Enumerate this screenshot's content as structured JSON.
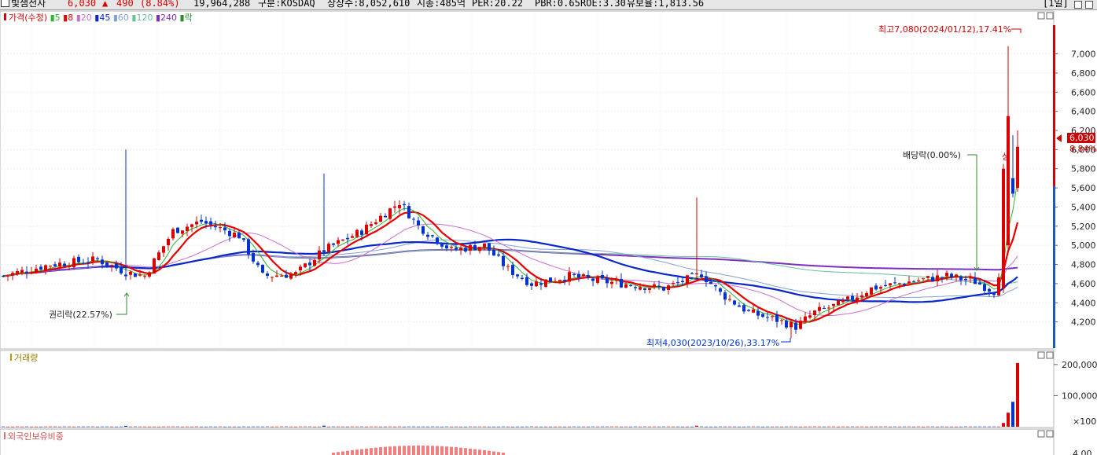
{
  "header": {
    "stock_name": "빛샘전자",
    "price": "6,030",
    "change_arrow": "▲",
    "change": "490",
    "change_pct": "(8.84%)",
    "volume": "19,964,288",
    "market": "구분:KOSDAQ",
    "shares": "상장수:8,052,610",
    "market_cap": "시총:485억",
    "per": "PER:20.22",
    "pbr": "PBR:0.65",
    "roe": "ROE:3.30",
    "float_rate": "유보율:1,813.56",
    "period_button": "[1일]",
    "colors": {
      "up": "#d90000",
      "down": "#0033cc"
    }
  },
  "legend": {
    "items": [
      {
        "label": "가격(수정)",
        "color": "#d40000"
      },
      {
        "label": "5",
        "color": "#2fb52f"
      },
      {
        "label": "8",
        "color": "#e60000"
      },
      {
        "label": "20",
        "color": "#c86fd0"
      },
      {
        "label": "45",
        "color": "#0a28c8"
      },
      {
        "label": "60",
        "color": "#7fa3d1"
      },
      {
        "label": "120",
        "color": "#6abf9b"
      },
      {
        "label": "240",
        "color": "#7d2fc0"
      },
      {
        "label": "락",
        "color": "#2f8a2f"
      }
    ]
  },
  "chart_data": [
    {
      "type": "candlestick",
      "title": "가격(수정)",
      "ylim": [
        4000,
        7300
      ],
      "y_ticks": [
        "7,000",
        "6,800",
        "6,600",
        "6,400",
        "6,200",
        "6,000",
        "5,800",
        "5,600",
        "5,400",
        "5,200",
        "5,000",
        "4,800",
        "4,600",
        "4,400",
        "4,200"
      ],
      "y_tick_values": [
        7000,
        6800,
        6600,
        6400,
        6200,
        6000,
        5800,
        5600,
        5400,
        5200,
        5000,
        4800,
        4600,
        4400,
        4200
      ],
      "current_price_label": "6,030",
      "current_change_label": "8.84%",
      "current_price": 6030,
      "annotations": {
        "high": "최고7,080(2024/01/12),17.41%",
        "low": "최저4,030(2023/10/26),33.17%",
        "rights": "권리락(22.57%)",
        "dividend": "배당락(0.00%)",
        "upper_limit_mark": "상"
      },
      "key_points": {
        "high": 7080,
        "low": 4030,
        "last_close": 6030,
        "previous_close": 5540
      },
      "moving_averages": [
        "5",
        "8",
        "20",
        "45",
        "60",
        "120",
        "240"
      ],
      "grid": true
    },
    {
      "type": "bar",
      "title": "거래량",
      "y_ticks": [
        "200,000",
        "100,000",
        "×100"
      ],
      "y_tick_values": [
        200000,
        100000
      ],
      "ylim": [
        0,
        230000
      ],
      "recent_values": [
        12000,
        45000,
        80000,
        205000
      ]
    },
    {
      "type": "bar",
      "title": "외국인보유비중",
      "y_ticks": [
        "4.00"
      ]
    }
  ]
}
